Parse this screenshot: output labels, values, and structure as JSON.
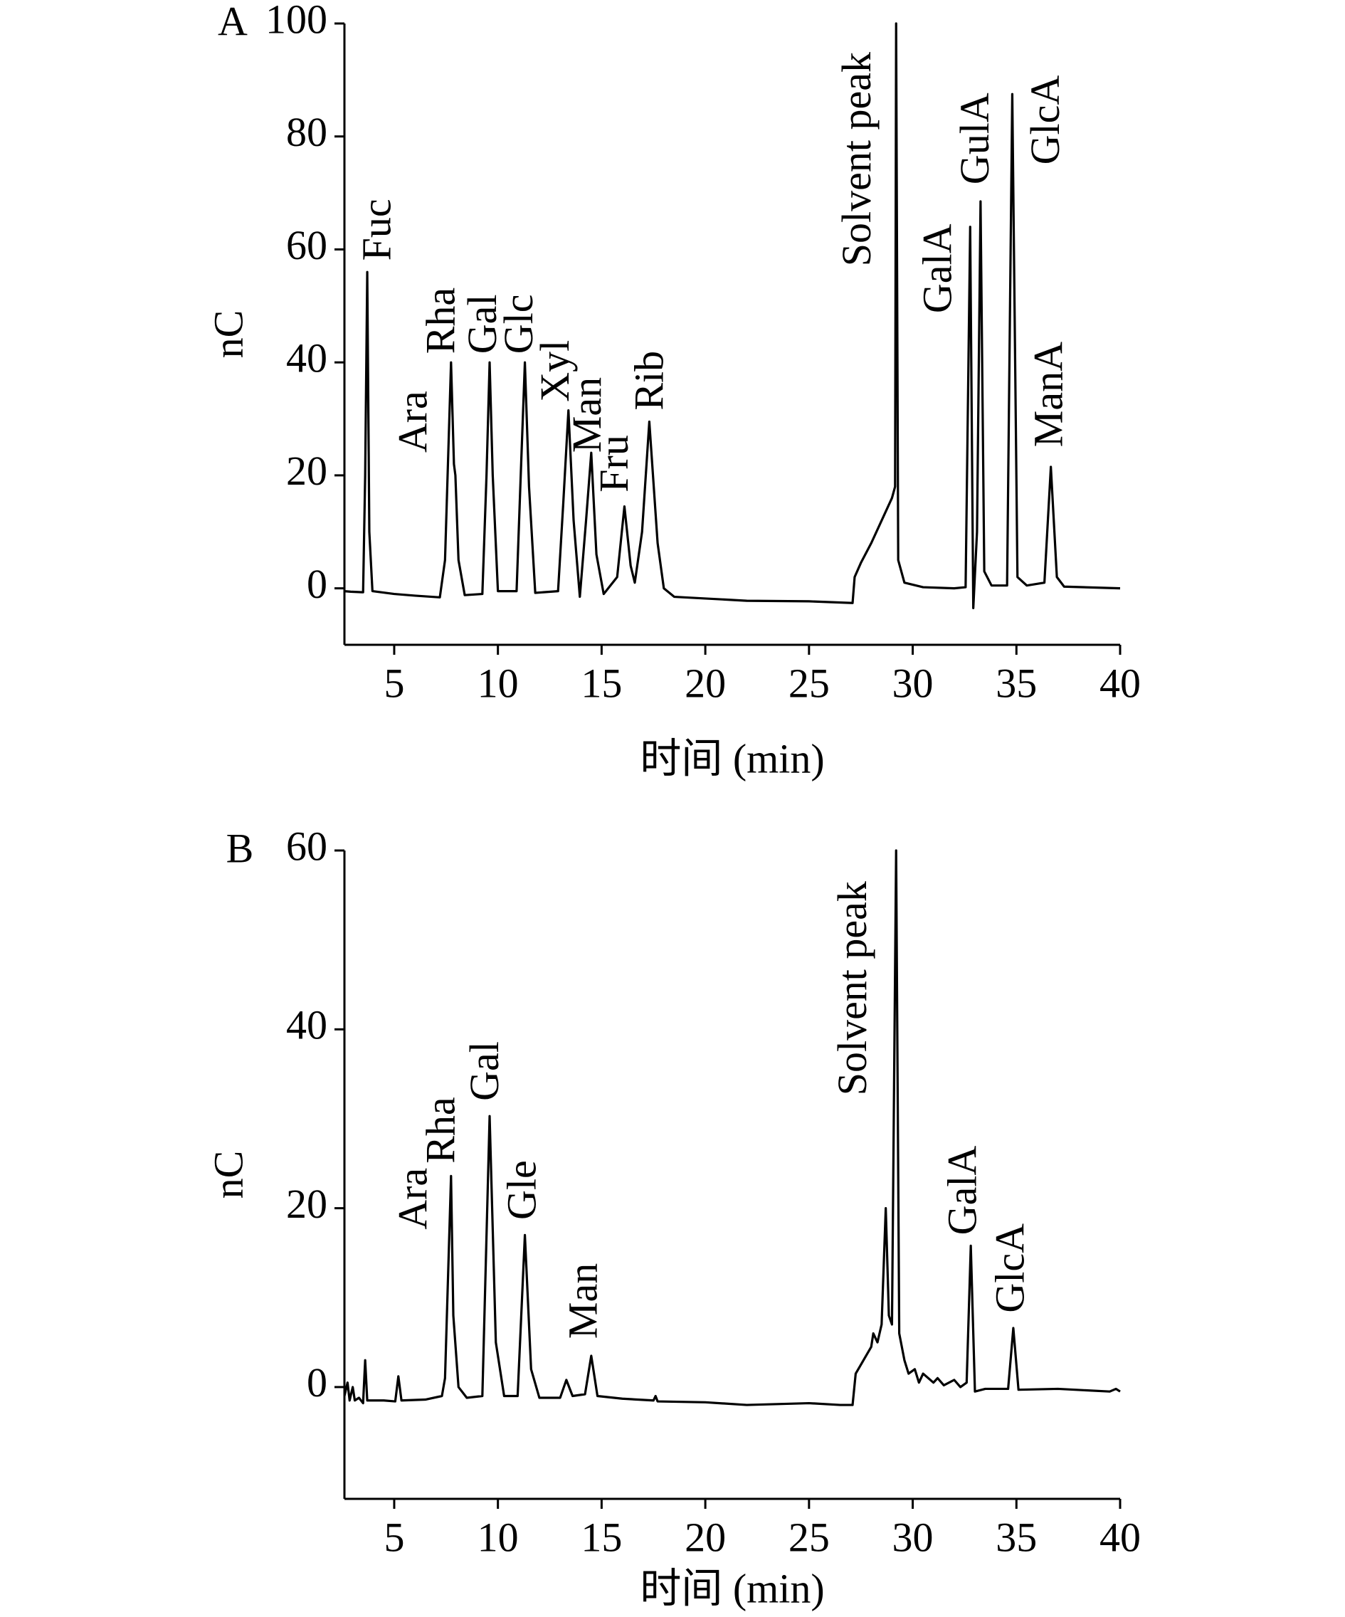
{
  "chart_data": [
    {
      "type": "line",
      "title": "A",
      "xlabel": "时间 (min)",
      "ylabel": "nC",
      "color": "#000000",
      "xlim": [
        2.6,
        40
      ],
      "xticks": [
        5,
        10,
        15,
        20,
        25,
        30,
        35,
        40
      ],
      "ylim": [
        -10,
        100
      ],
      "yticks": [
        0,
        20,
        40,
        60,
        80,
        100
      ],
      "annotations": [
        "Fuc",
        "Ara",
        "Rha",
        "Gal",
        "Glc",
        "Xyl",
        "Man",
        "Fru",
        "Rib",
        "Solvent peak",
        "GalA",
        "GulA",
        "GlcA",
        "ManA"
      ],
      "x": [
        2.6,
        2.9,
        3.5,
        3.6,
        3.7,
        3.8,
        3.95,
        5,
        6,
        7.2,
        7.45,
        7.74,
        7.88,
        7.95,
        8.1,
        8.4,
        9.25,
        9.45,
        9.6,
        9.75,
        10,
        10.9,
        11.1,
        11.3,
        11.5,
        11.8,
        12.9,
        13.15,
        13.4,
        13.65,
        13.95,
        14.25,
        14.5,
        14.75,
        15.1,
        15.75,
        16.1,
        16.4,
        16.6,
        16.95,
        17.3,
        17.7,
        18,
        18.5,
        20,
        22,
        25,
        27.1,
        27.2,
        27.5,
        28,
        28.5,
        29,
        29.15,
        29.2,
        29.3,
        29.6,
        30.5,
        32,
        32.55,
        32.77,
        32.92,
        33.1,
        33.27,
        33.45,
        33.8,
        34.55,
        34.8,
        35.05,
        35.5,
        36.35,
        36.66,
        36.95,
        37.3,
        40
      ],
      "values": [
        -0.5,
        -0.6,
        -0.7,
        20,
        56,
        10,
        -0.5,
        -1,
        -1.3,
        -1.6,
        5,
        40,
        22,
        20,
        5,
        -1.2,
        -1,
        20,
        40,
        20,
        -0.5,
        -0.5,
        20,
        40,
        18,
        -0.8,
        -0.5,
        15,
        31.5,
        12,
        -1.5,
        12,
        24,
        6,
        -1,
        2,
        14.5,
        4,
        1,
        10,
        29.5,
        8,
        0,
        -1.5,
        -1.8,
        -2.2,
        -2.3,
        -2.6,
        2,
        4.5,
        8,
        12,
        16,
        18,
        100,
        5,
        1,
        0.2,
        0,
        0.2,
        64,
        -3.5,
        10,
        68.5,
        3,
        0.5,
        0.5,
        87.5,
        2,
        0.5,
        1,
        21.5,
        2,
        0.3,
        0
      ]
    },
    {
      "type": "line",
      "title": "B",
      "xlabel": "时间 (min)",
      "ylabel": "nC",
      "color": "#000000",
      "xlim": [
        2.6,
        40
      ],
      "xticks": [
        5,
        10,
        15,
        20,
        25,
        30,
        35,
        40
      ],
      "ylim": [
        -12.5,
        60
      ],
      "yticks": [
        0,
        20,
        40,
        60
      ],
      "annotations": [
        "Ara",
        "Rha",
        "Gal",
        "Gle",
        "Man",
        "Solvent peak",
        "GalA",
        "GlcA"
      ],
      "x": [
        2.6,
        2.75,
        2.85,
        3.0,
        3.1,
        3.3,
        3.5,
        3.6,
        3.7,
        4.5,
        5.05,
        5.2,
        5.35,
        6.5,
        7.3,
        7.45,
        7.74,
        7.85,
        8.1,
        8.5,
        9.25,
        9.6,
        9.9,
        10.3,
        10.95,
        11.3,
        11.6,
        12,
        13,
        13.3,
        13.6,
        14.2,
        14.5,
        14.8,
        16,
        17.5,
        17.6,
        17.7,
        20,
        22,
        25,
        26.5,
        27.1,
        27.25,
        27.5,
        28,
        28.1,
        28.3,
        28.5,
        28.7,
        28.85,
        29.0,
        29.2,
        29.35,
        29.6,
        29.8,
        30.1,
        30.3,
        30.5,
        31,
        31.2,
        31.5,
        32,
        32.3,
        32.6,
        32.8,
        33.0,
        33.5,
        34.6,
        34.85,
        35.1,
        37,
        39.5,
        39.8,
        40
      ],
      "values": [
        -1,
        0.5,
        -1.5,
        0,
        -1.5,
        -1.2,
        -1.8,
        3,
        -1.5,
        -1.5,
        -1.6,
        1.2,
        -1.5,
        -1.4,
        -1,
        1,
        23.6,
        8,
        0,
        -1.2,
        -1,
        30.3,
        5,
        -1,
        -1,
        17,
        2,
        -1.2,
        -1.2,
        0.8,
        -1,
        -0.8,
        3.5,
        -1,
        -1.3,
        -1.5,
        -1,
        -1.6,
        -1.7,
        -2,
        -1.8,
        -2,
        -2,
        1.5,
        2.5,
        4.5,
        6,
        5,
        7,
        20,
        8,
        7,
        60,
        6,
        3,
        1.5,
        2,
        0.5,
        1.5,
        0.5,
        1,
        0.2,
        0.8,
        0,
        0.5,
        15.8,
        -0.5,
        -0.2,
        -0.2,
        6.6,
        -0.3,
        -0.2,
        -0.5,
        -0.2,
        -0.5
      ]
    }
  ]
}
